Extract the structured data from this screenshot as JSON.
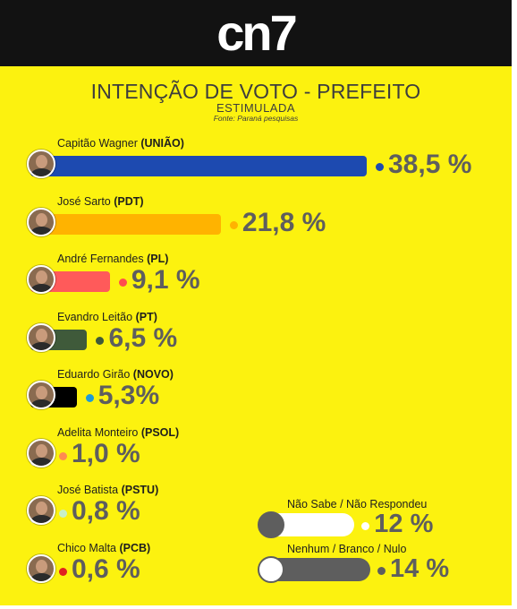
{
  "header": {
    "logo": "cn7"
  },
  "chart_data": {
    "type": "bar",
    "title": "INTENÇÃO DE VOTO - PREFEITO",
    "subtitle": "ESTIMULADA",
    "source": "Fonte: Paraná pesquisas",
    "categories": [
      "Capitão  Wagner",
      "José  Sarto",
      "André Fernandes",
      "Evandro Leitão",
      "Eduardo  Girão",
      "Adelita Monteiro",
      "José  Batista",
      "Chico Malta"
    ],
    "parties": [
      "(UNIÃO)",
      "(PDT)",
      "(PL)",
      "(PT)",
      "(NOVO)",
      "(PSOL)",
      "(PSTU)",
      "(PCB)"
    ],
    "values": [
      38.5,
      21.8,
      9.1,
      6.5,
      5.3,
      1.0,
      0.8,
      0.6
    ],
    "value_labels": [
      "38,5 %",
      "21,8 %",
      "9,1 %",
      "6,5 %",
      "5,3%",
      "1,0 %",
      "0,8 %",
      "0,6 %"
    ],
    "colors": [
      "#1d4ab0",
      "#ffb300",
      "#ff5a5a",
      "#3f5a3a",
      "#000000",
      "#ffffff",
      "#ffffff",
      "#ffffff"
    ],
    "dot_colors": [
      "#1d4ab0",
      "#ffb300",
      "#ff4d4d",
      "#3f5a3a",
      "#1e9bd7",
      "#ff8a50",
      "#c8f0c8",
      "#e02020"
    ],
    "others": [
      {
        "label": "Não Sabe / Não Respondeu",
        "value": 12,
        "value_label": "12 %",
        "knob_color": "#5e5e5e",
        "dot_color": "#ffffff"
      },
      {
        "label": "Nenhum / Branco / Nulo",
        "value": 14,
        "value_label": "14 %",
        "knob_color": "#ffffff",
        "dot_color": "#5e5e5e"
      }
    ]
  }
}
